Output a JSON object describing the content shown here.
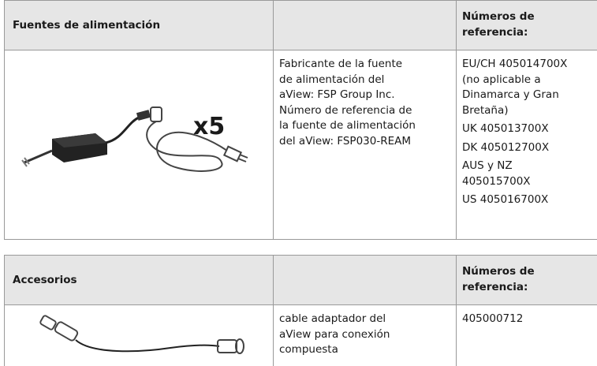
{
  "tables": [
    {
      "title": "Fuentes de alimentación",
      "ref_header": [
        "Números de",
        "referencia:"
      ],
      "image_label": "x5",
      "description": [
        [
          "Fabricante de la fuente",
          "de alimentación del",
          "aView: FSP Group Inc.",
          "Número de referencia de",
          "la fuente de alimentación",
          "del aView: FSP030-REAM"
        ]
      ],
      "references": [
        [
          "EU/CH 405014700X",
          "(no aplicable a",
          "Dinamarca y Gran",
          "Bretaña)"
        ],
        [
          "UK 405013700X"
        ],
        [
          "DK 405012700X"
        ],
        [
          "AUS y NZ",
          "405015700X"
        ],
        [
          "US 405016700X"
        ]
      ]
    },
    {
      "title": "Accesorios",
      "ref_header": [
        "Números de",
        "referencia:"
      ],
      "description": [
        [
          "cable adaptador del",
          "aView para conexión",
          "compuesta"
        ]
      ],
      "references": [
        [
          "405000712"
        ]
      ]
    }
  ]
}
